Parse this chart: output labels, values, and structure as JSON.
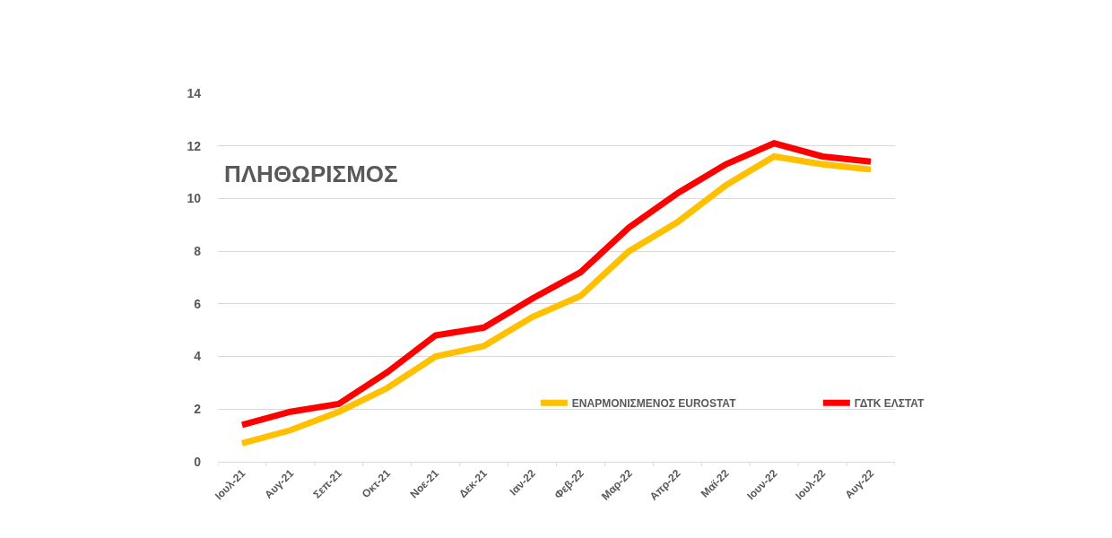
{
  "chart_data": {
    "type": "line",
    "title": "ΠΛΗΘΩΡΙΣΜΟΣ",
    "categories": [
      "Ιουλ-21",
      "Αυγ-21",
      "Σεπ-21",
      "Οκτ-21",
      "Νοε-21",
      "Δεκ-21",
      "Ιαν-22",
      "Φεβ-22",
      "Μαρ-22",
      "Απρ-22",
      "Μαϊ-22",
      "Ιουν-22",
      "Ιουλ-22",
      "Αυγ-22"
    ],
    "series": [
      {
        "name": "ΕΝΑΡΜΟΝΙΣΜΕΝΟΣ EUROSTAT",
        "color": "#ffc000",
        "values": [
          0.7,
          1.2,
          1.9,
          2.8,
          4.0,
          4.4,
          5.5,
          6.3,
          8.0,
          9.1,
          10.5,
          11.6,
          11.3,
          11.1
        ]
      },
      {
        "name": "ΓΔΤΚ ΕΛΣΤΑΤ",
        "color": "#ff0000",
        "values": [
          1.4,
          1.9,
          2.2,
          3.4,
          4.8,
          5.1,
          6.2,
          7.2,
          8.9,
          10.2,
          11.3,
          12.1,
          11.6,
          11.4
        ]
      }
    ],
    "ylim": [
      0,
      14
    ],
    "yticks": [
      0,
      2,
      4,
      6,
      8,
      10,
      12,
      14
    ],
    "grid": "y",
    "legend": "bottom right",
    "marker": "none",
    "line_style": "solid"
  }
}
